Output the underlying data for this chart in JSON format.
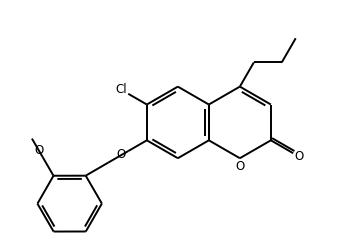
{
  "background": "#ffffff",
  "line_color": "#000000",
  "line_width": 1.4,
  "font_size": 8.5,
  "figsize": [
    3.58,
    2.52
  ],
  "dpi": 100,
  "xlim": [
    0,
    10
  ],
  "ylim": [
    0,
    7
  ]
}
